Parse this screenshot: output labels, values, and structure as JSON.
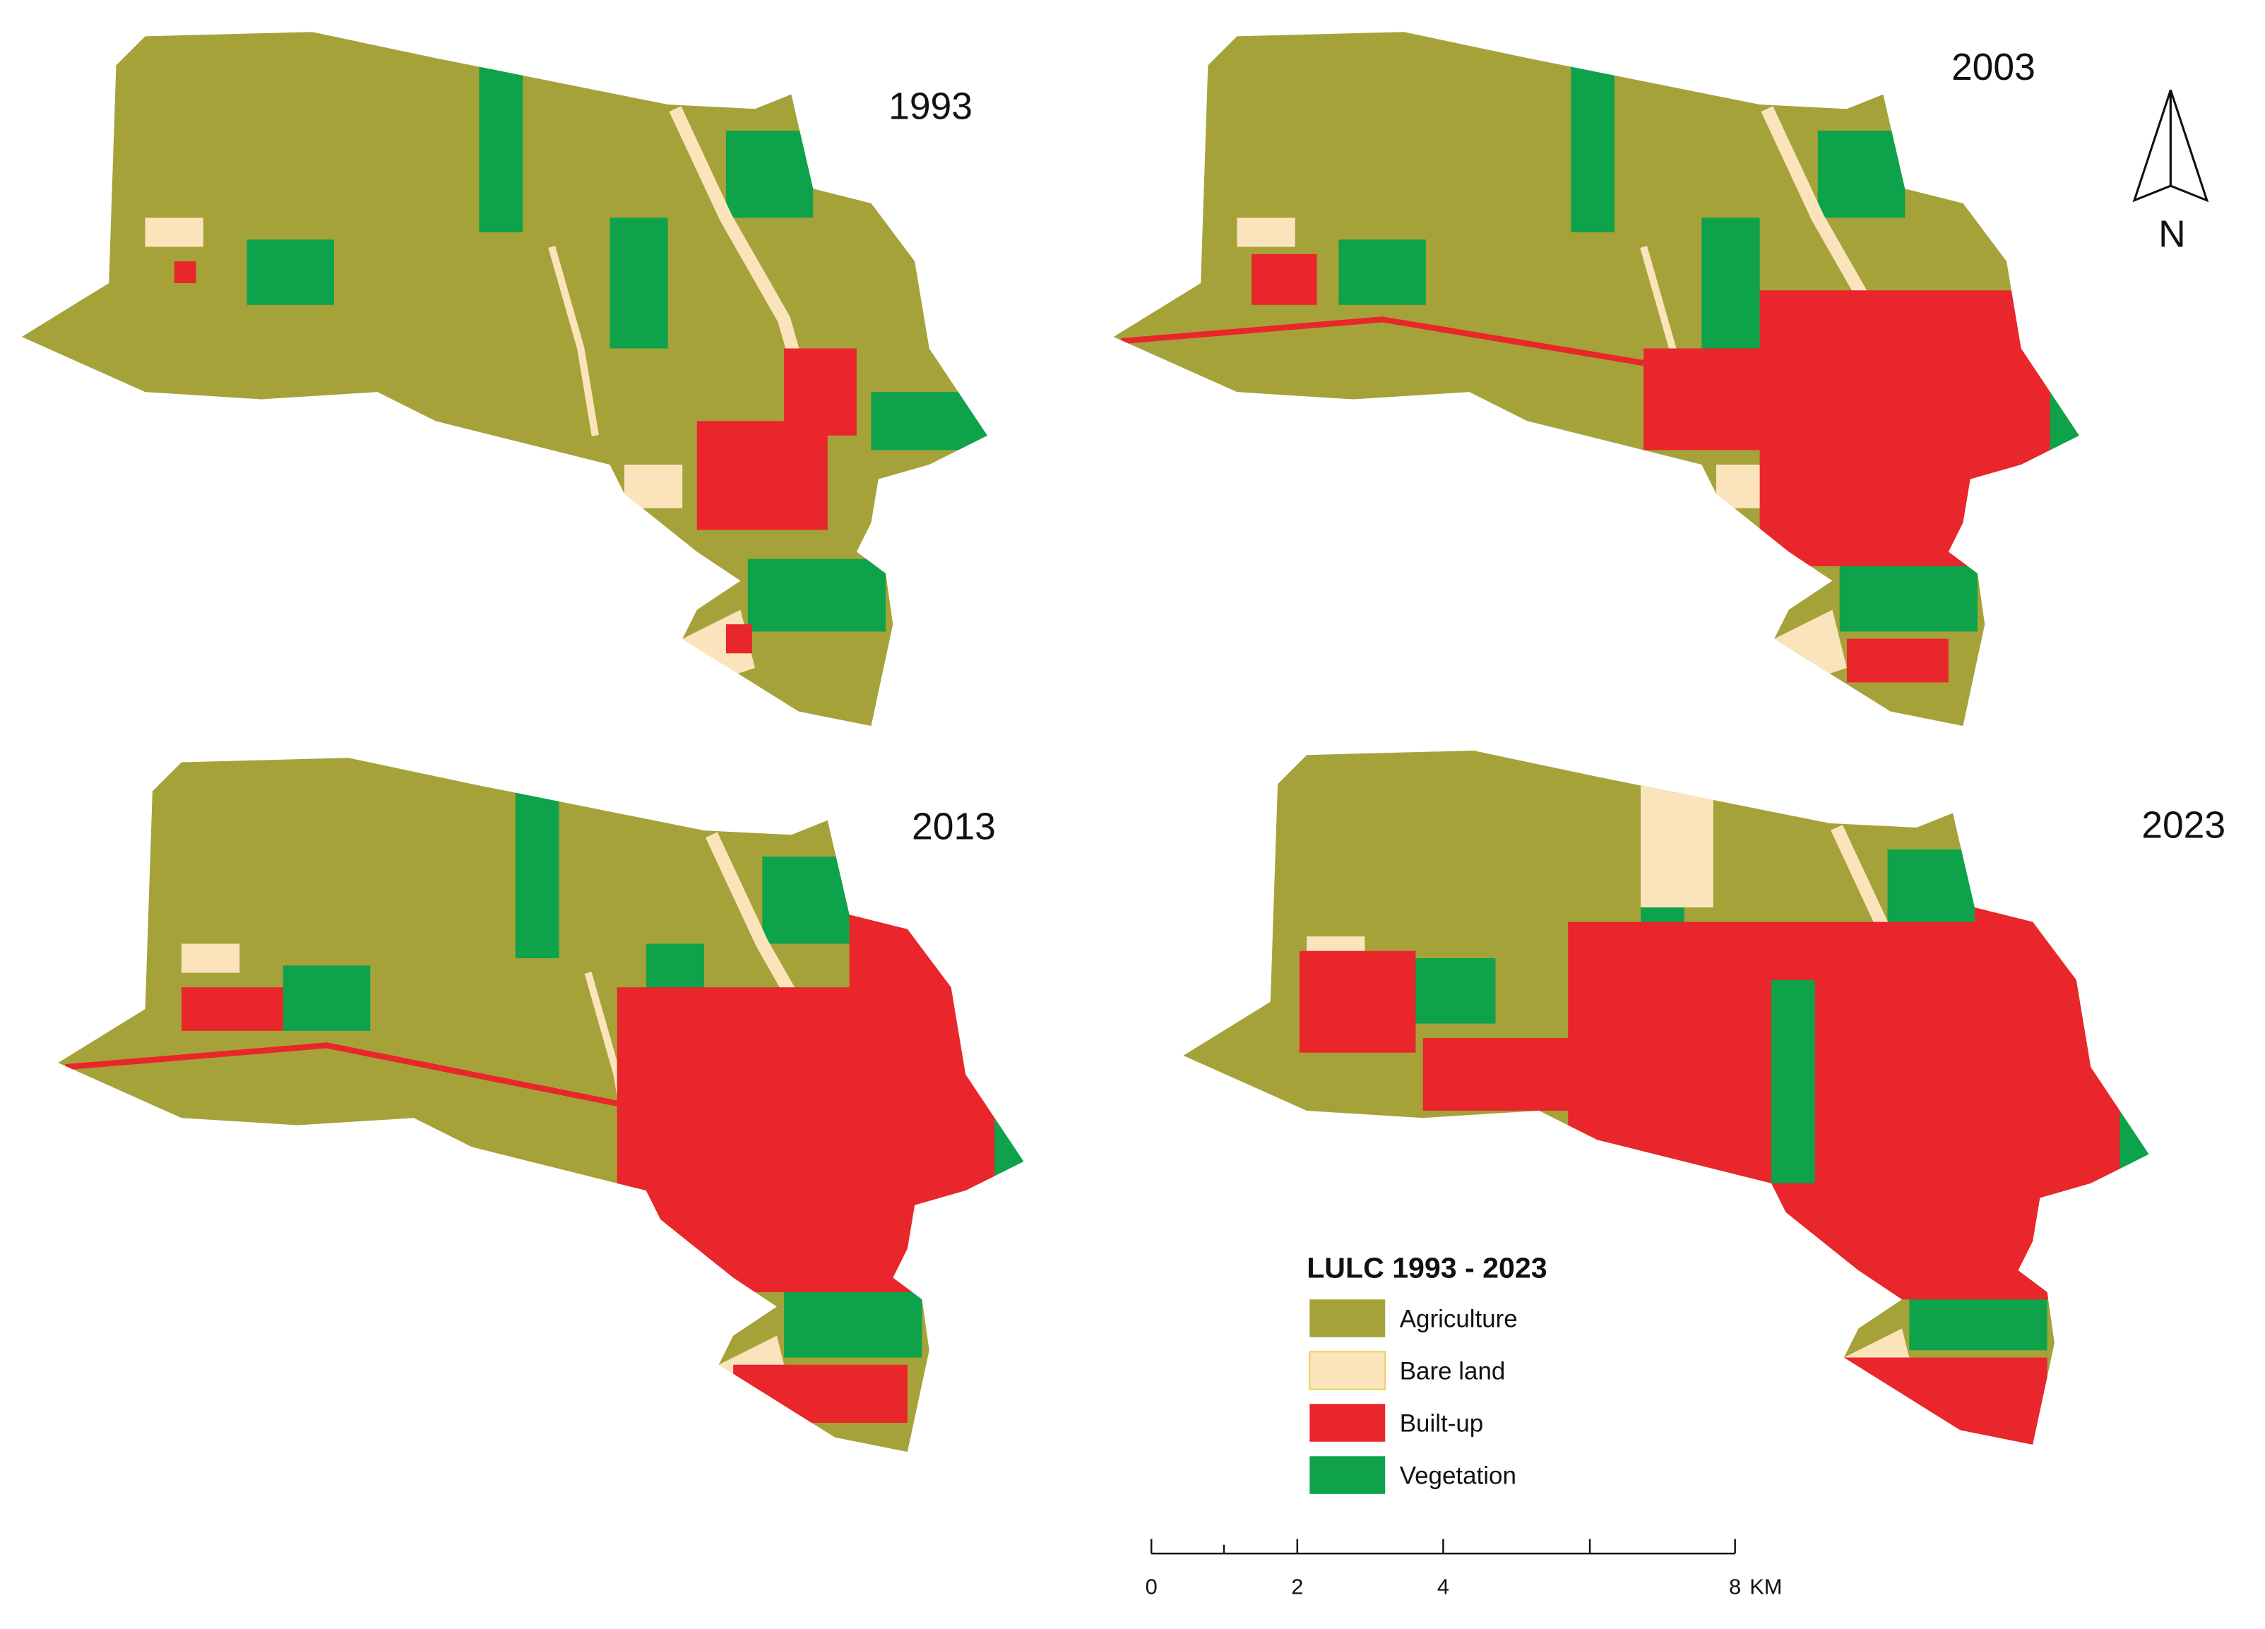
{
  "panels": [
    {
      "year": "1993"
    },
    {
      "year": "2003"
    },
    {
      "year": "2013"
    },
    {
      "year": "2023"
    }
  ],
  "north_arrow": {
    "label": "N"
  },
  "legend": {
    "title": "LULC 1993 - 2023",
    "items": [
      {
        "label": "Agriculture",
        "color": "#a6a23a"
      },
      {
        "label": "Bare land",
        "color": "#fbe4bb"
      },
      {
        "label": "Built-up",
        "color": "#e8262b"
      },
      {
        "label": "Vegetation",
        "color": "#0ea24a"
      }
    ]
  },
  "scale_bar": {
    "ticks": [
      0,
      2,
      4,
      8
    ],
    "unit": "KM"
  }
}
